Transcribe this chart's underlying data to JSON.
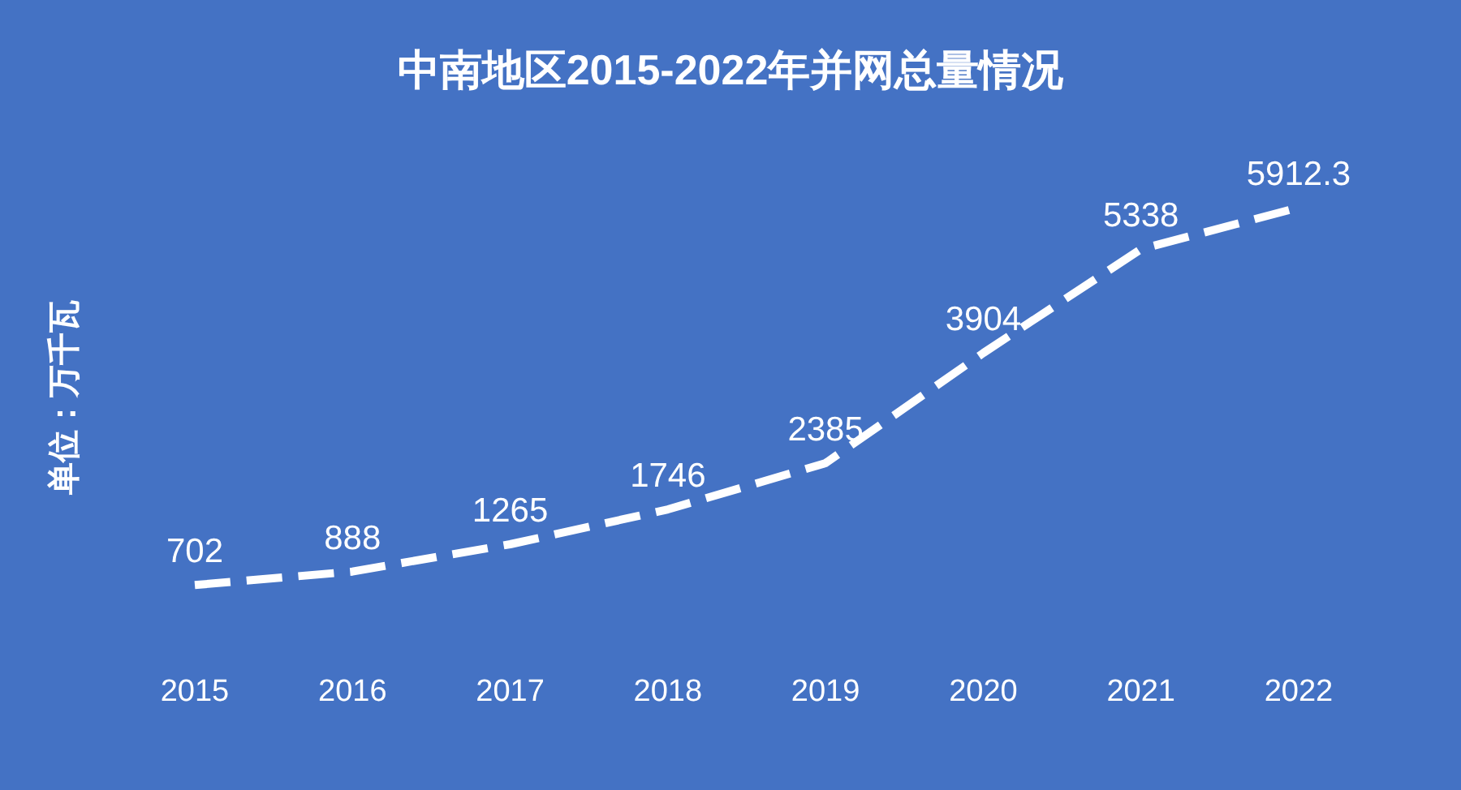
{
  "chart_data": {
    "type": "line",
    "title": "中南地区2015-2022年并网总量情况",
    "ylabel": "单位：万千瓦",
    "categories": [
      "2015",
      "2016",
      "2017",
      "2018",
      "2019",
      "2020",
      "2021",
      "2022"
    ],
    "series": [
      {
        "color": "#ffffff",
        "values": [
          702,
          888,
          1265,
          1746,
          2385,
          3904,
          5338,
          5912.3
        ]
      }
    ],
    "data_labels": true,
    "line_style": "dashed",
    "marker": "none",
    "grid": false,
    "tick_labels": "x"
  }
}
